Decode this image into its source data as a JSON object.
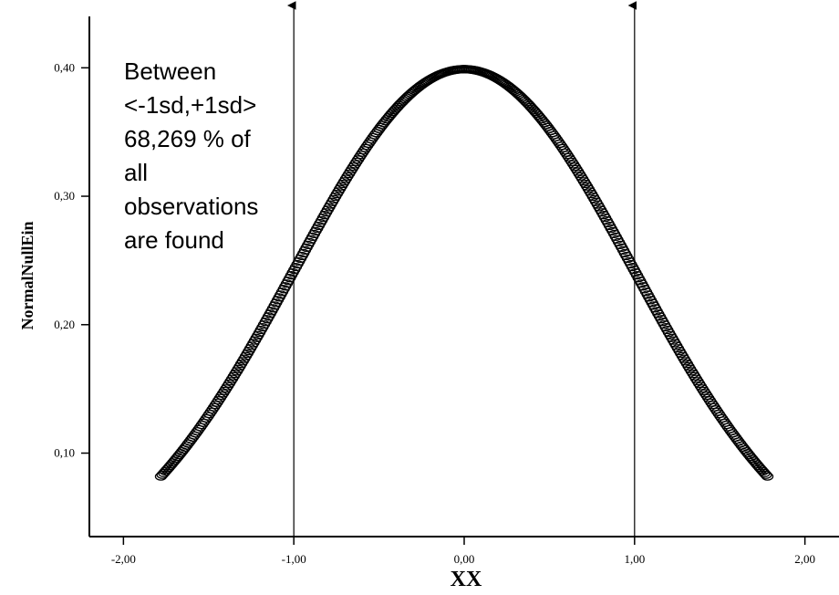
{
  "chart_data": {
    "type": "scatter",
    "title": "",
    "xlabel": "XX",
    "ylabel": "NormalNullEin",
    "xlim": [
      -2.2,
      2.2
    ],
    "ylim": [
      0.035,
      0.44
    ],
    "x_ticks": [
      -2,
      -1,
      0,
      1,
      2
    ],
    "x_tick_labels": [
      "-2,00",
      "-1,00",
      "0,00",
      "1,00",
      "2,00"
    ],
    "y_ticks": [
      0.1,
      0.2,
      0.3,
      0.4
    ],
    "y_tick_labels": [
      "0,10",
      "0,20",
      "0,30",
      "0,40"
    ],
    "grid": false,
    "legend": "none",
    "series": [
      {
        "distribution": "standard normal density",
        "x_range": [
          -1.78,
          1.78
        ],
        "marker": "open-circle",
        "color": "#000000"
      }
    ],
    "reference_lines": [
      {
        "x": -1,
        "style": "vertical-arrow"
      },
      {
        "x": 1,
        "style": "vertical-arrow"
      }
    ],
    "annotation": {
      "lines": [
        "Between",
        "<-1sd,+1sd>",
        "68,269 % of",
        "all",
        "observations",
        "are found"
      ]
    }
  }
}
